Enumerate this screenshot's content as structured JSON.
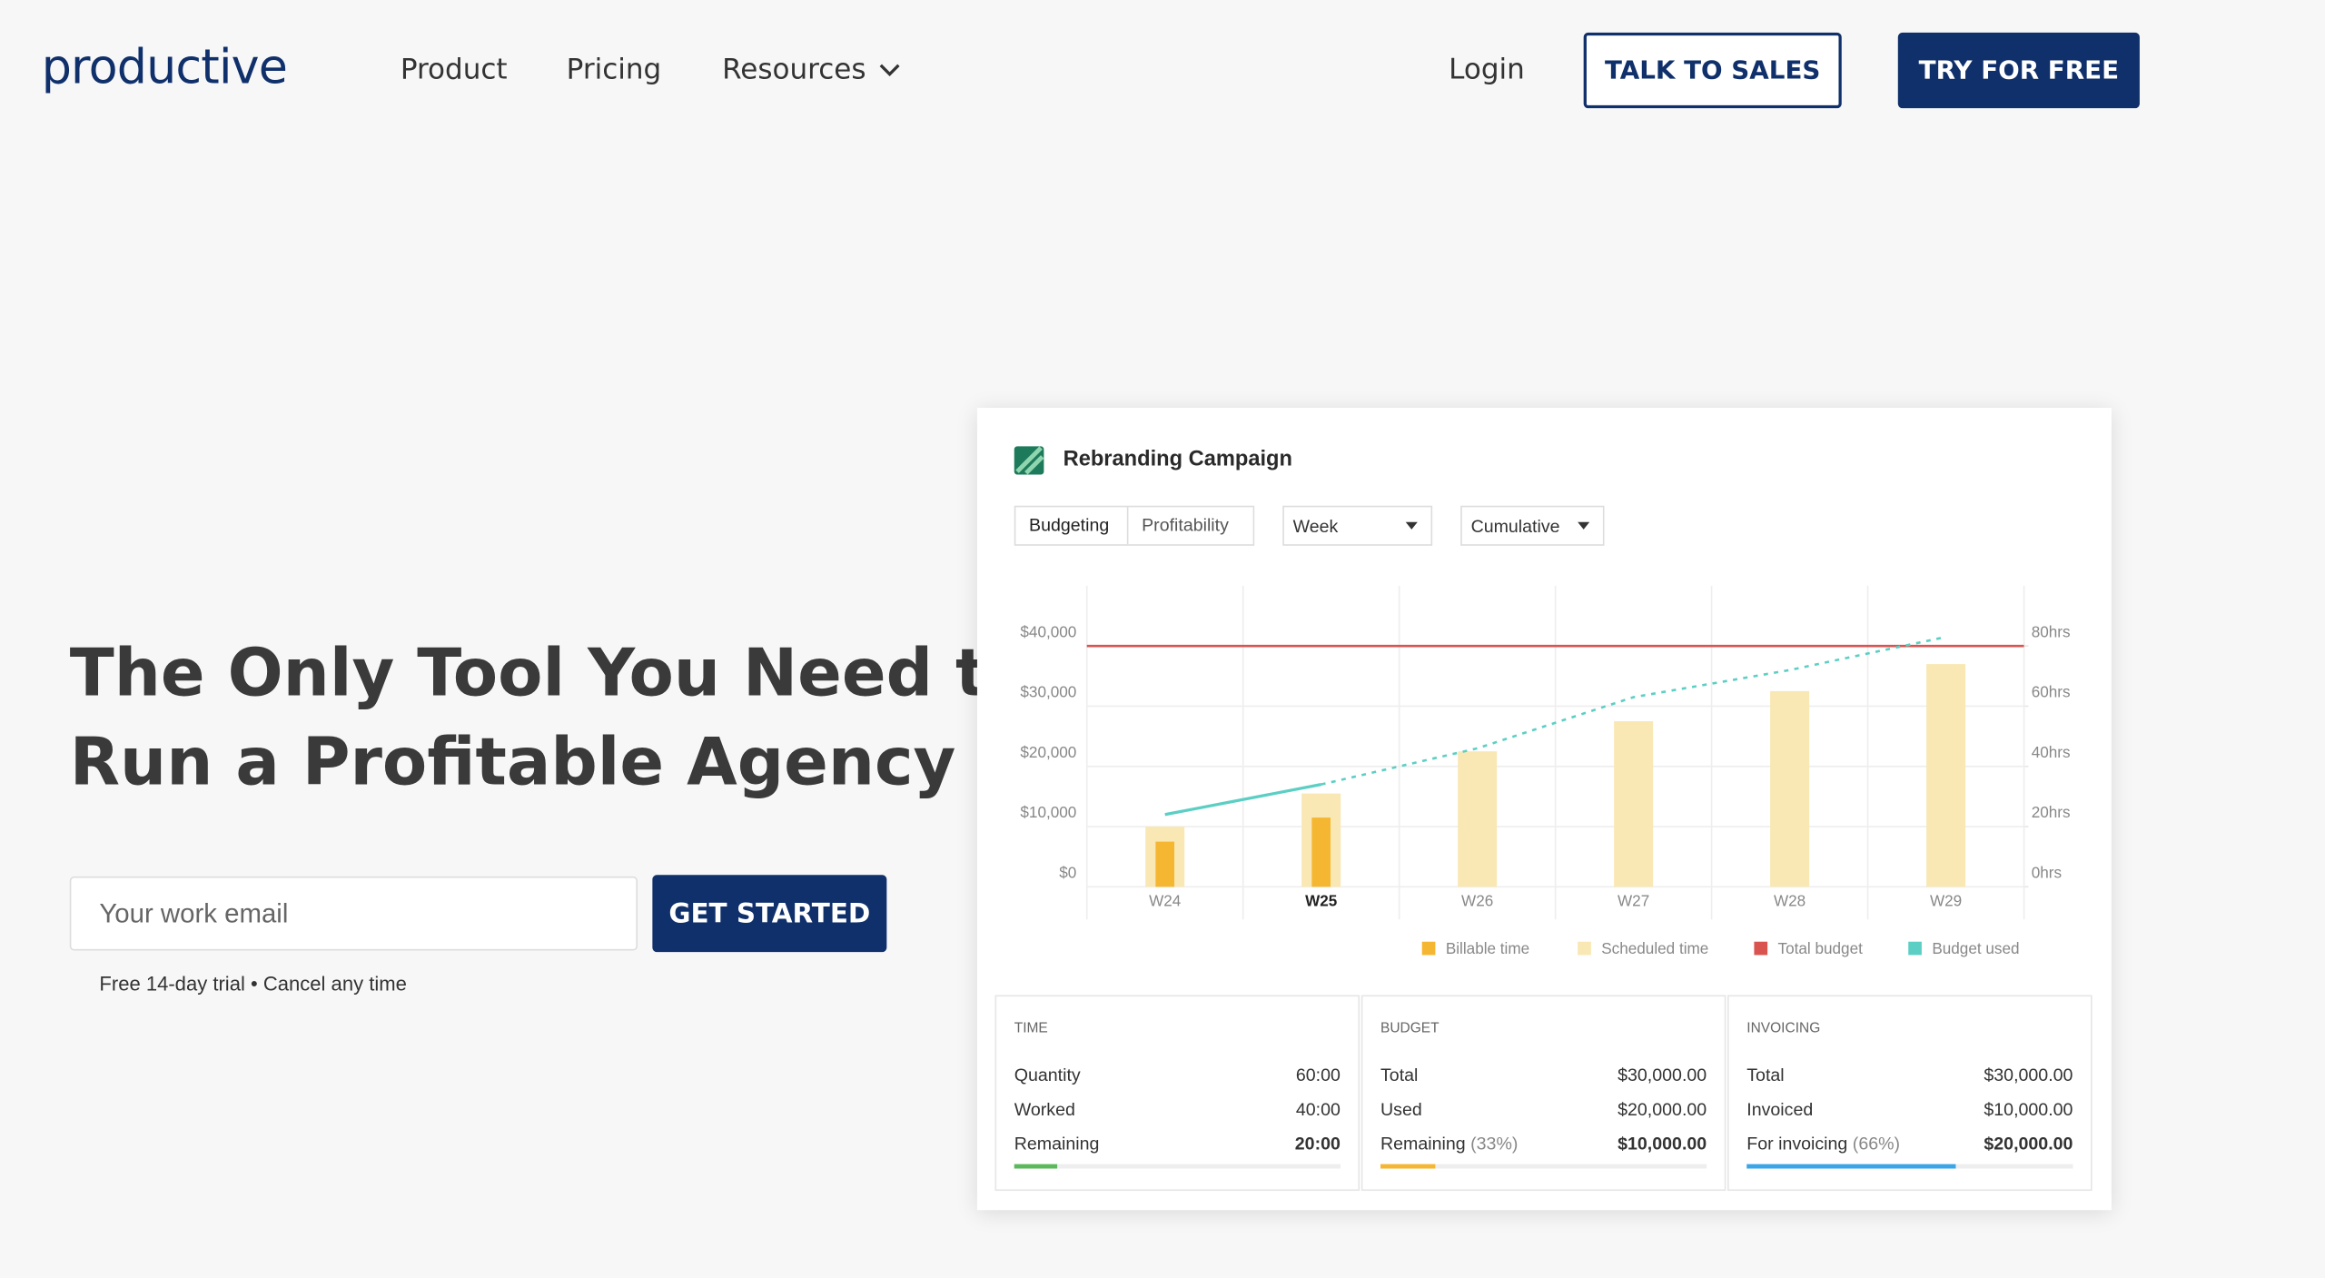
{
  "nav": {
    "logo": "productive",
    "links": [
      "Product",
      "Pricing",
      "Resources"
    ],
    "login": "Login",
    "talk_to_sales": "TALK TO SALES",
    "try_free": "TRY FOR FREE"
  },
  "hero": {
    "title_lines": [
      "The Only Tool You Need to",
      "Run a Profitable Agency"
    ],
    "email_placeholder": "Your work email",
    "cta": "GET STARTED",
    "note": "Free 14-day trial • Cancel any time"
  },
  "chart_data": {
    "type": "bar",
    "title": "Rebranding Campaign",
    "tabs": [
      "Budgeting",
      "Profitability"
    ],
    "dropdowns": [
      "Week",
      "Cumulative"
    ],
    "categories": [
      "W24",
      "W25",
      "W26",
      "W27",
      "W28",
      "W29"
    ],
    "current_index": 1,
    "ylim": [
      0,
      50000
    ],
    "yticks": [
      {
        "value": 0,
        "label": "$0"
      },
      {
        "value": 10000,
        "label": "$10,000"
      },
      {
        "value": 20000,
        "label": "$20,000"
      },
      {
        "value": 30000,
        "label": "$30,000"
      },
      {
        "value": 40000,
        "label": "$40,000"
      }
    ],
    "y2lim": [
      0,
      100
    ],
    "y2ticks": [
      {
        "value": 0,
        "label": "0hrs"
      },
      {
        "value": 20,
        "label": "20hrs"
      },
      {
        "value": 40,
        "label": "40hrs"
      },
      {
        "value": 60,
        "label": "60hrs"
      },
      {
        "value": 80,
        "label": "80hrs"
      }
    ],
    "grid": true,
    "series": [
      {
        "name": "Scheduled time",
        "type": "bar",
        "axis": "y2",
        "color": "#f9e8b4",
        "values": [
          20,
          31,
          45,
          55,
          65,
          74
        ]
      },
      {
        "name": "Billable time",
        "type": "bar",
        "axis": "y2",
        "color": "#f5b731",
        "values": [
          15,
          23,
          null,
          null,
          null,
          null
        ]
      },
      {
        "name": "Budget used",
        "type": "line",
        "color": "#5ccfc4",
        "dashed_from": 1,
        "values": [
          12000,
          17000,
          23000,
          31500,
          36000,
          41500
        ]
      }
    ],
    "reference_line": {
      "name": "Total budget",
      "color": "#d9534f",
      "value": 40000
    },
    "legend": [
      "Billable time",
      "Scheduled time",
      "Total budget",
      "Budget used"
    ]
  },
  "summary": [
    {
      "title": "TIME",
      "progress": 13,
      "color": "#5cb85c",
      "rows": [
        {
          "label": "Quantity",
          "value": "60:00"
        },
        {
          "label": "Worked",
          "value": "40:00"
        },
        {
          "label": "Remaining",
          "value": "20:00"
        }
      ]
    },
    {
      "title": "BUDGET",
      "progress": 17,
      "color": "#f5b731",
      "rows": [
        {
          "label": "Total",
          "value": "$30,000.00"
        },
        {
          "label": "Used",
          "value": "$20,000.00"
        },
        {
          "label": "Remaining",
          "note": "(33%)",
          "value": "$10,000.00"
        }
      ]
    },
    {
      "title": "INVOICING",
      "progress": 64,
      "color": "#3aa6e8",
      "rows": [
        {
          "label": "Total",
          "value": "$30,000.00"
        },
        {
          "label": "Invoiced",
          "value": "$10,000.00"
        },
        {
          "label": "For invoicing",
          "note": "(66%)",
          "value": "$20,000.00"
        }
      ]
    }
  ]
}
